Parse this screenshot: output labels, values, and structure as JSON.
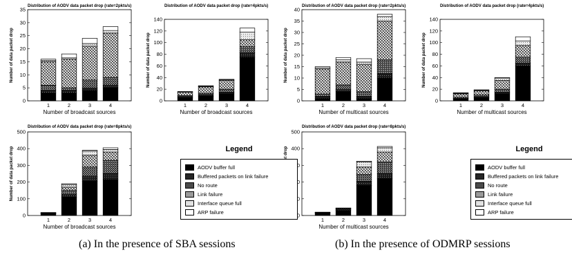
{
  "captions": {
    "a": "(a)  In the presence of SBA sessions",
    "b": "(b)  In the presence of ODMRP sessions"
  },
  "legend": {
    "title": "Legend",
    "items": [
      {
        "label": "AODV buffer full",
        "pattern": "black"
      },
      {
        "label": "Buffered packets on link failure",
        "pattern": "dark"
      },
      {
        "label": "No route",
        "pattern": "dense"
      },
      {
        "label": "Link failure",
        "pattern": "check"
      },
      {
        "label": "Interface queue full",
        "pattern": "light"
      },
      {
        "label": "ARP failure",
        "pattern": "white"
      }
    ]
  },
  "chart_data": [
    {
      "type": "bar",
      "stacked": true,
      "title": "Distribution of AODV data packet drop (rate=2pkts/s)",
      "xlabel": "Number of broadcast sources",
      "ylabel": "Number of data packet drop",
      "categories": [
        "1",
        "2",
        "3",
        "4"
      ],
      "ylim": [
        0,
        35
      ],
      "yticks": [
        0,
        5,
        10,
        15,
        20,
        25,
        30,
        35
      ],
      "series": [
        {
          "name": "AODV buffer full",
          "values": [
            3,
            3,
            4,
            5
          ]
        },
        {
          "name": "Buffered packets on link failure",
          "values": [
            1,
            1,
            1,
            1
          ]
        },
        {
          "name": "No route",
          "values": [
            2,
            1,
            3,
            3
          ]
        },
        {
          "name": "Link failure",
          "values": [
            9,
            11,
            13,
            17
          ]
        },
        {
          "name": "Interface queue full",
          "values": [
            0.5,
            0.5,
            1,
            1
          ]
        },
        {
          "name": "ARP failure",
          "values": [
            0.5,
            1.5,
            2,
            1.5
          ]
        }
      ]
    },
    {
      "type": "bar",
      "stacked": true,
      "title": "Distribution of AODV data packet drop (rate=4pkts/s)",
      "xlabel": "Number of broadcast sources",
      "ylabel": "Number of data packet drop",
      "categories": [
        "1",
        "2",
        "3",
        "4"
      ],
      "ylim": [
        0,
        140
      ],
      "yticks": [
        0,
        20,
        40,
        60,
        80,
        100,
        120,
        140
      ],
      "series": [
        {
          "name": "AODV buffer full",
          "values": [
            5,
            8,
            12,
            75
          ]
        },
        {
          "name": "Buffered packets on link failure",
          "values": [
            2,
            2,
            3,
            8
          ]
        },
        {
          "name": "No route",
          "values": [
            2,
            3,
            5,
            10
          ]
        },
        {
          "name": "Link failure",
          "values": [
            6,
            11,
            15,
            12
          ]
        },
        {
          "name": "Interface queue full",
          "values": [
            0.5,
            1,
            1,
            13
          ]
        },
        {
          "name": "ARP failure",
          "values": [
            0.5,
            1,
            1,
            7
          ]
        }
      ]
    },
    {
      "type": "bar",
      "stacked": true,
      "title": "Distribution of AODV data packet drop (rate=2pkts/s)",
      "xlabel": "Number of multicast sources",
      "ylabel": "Number of data packet drop",
      "categories": [
        "1",
        "2",
        "3",
        "4"
      ],
      "ylim": [
        0,
        40
      ],
      "yticks": [
        0,
        5,
        10,
        15,
        20,
        25,
        30,
        35,
        40
      ],
      "series": [
        {
          "name": "AODV buffer full",
          "values": [
            1,
            4,
            1,
            10
          ]
        },
        {
          "name": "Buffered packets on link failure",
          "values": [
            1,
            1,
            1,
            2
          ]
        },
        {
          "name": "No route",
          "values": [
            1,
            2,
            2,
            6
          ]
        },
        {
          "name": "Link failure",
          "values": [
            11,
            10,
            12,
            17
          ]
        },
        {
          "name": "Interface queue full",
          "values": [
            0.5,
            1,
            1,
            2
          ]
        },
        {
          "name": "ARP failure",
          "values": [
            0.5,
            1,
            1.5,
            1
          ]
        }
      ]
    },
    {
      "type": "bar",
      "stacked": true,
      "title": "Distribution of AODV data packet drop (rate=4pkts/s)",
      "xlabel": "Number of multicast sources",
      "ylabel": "Number of data packet drop",
      "categories": [
        "1",
        "2",
        "3",
        "4"
      ],
      "ylim": [
        0,
        140
      ],
      "yticks": [
        0,
        20,
        40,
        60,
        80,
        100,
        120,
        140
      ],
      "series": [
        {
          "name": "AODV buffer full",
          "values": [
            3,
            5,
            12,
            60
          ]
        },
        {
          "name": "Buffered packets on link failure",
          "values": [
            1,
            2,
            3,
            5
          ]
        },
        {
          "name": "No route",
          "values": [
            2,
            3,
            5,
            10
          ]
        },
        {
          "name": "Link failure",
          "values": [
            6,
            7,
            15,
            20
          ]
        },
        {
          "name": "Interface queue full",
          "values": [
            1,
            1,
            4,
            8
          ]
        },
        {
          "name": "ARP failure",
          "values": [
            1,
            1,
            1,
            7
          ]
        }
      ]
    },
    {
      "type": "bar",
      "stacked": true,
      "title": "Distribution of AODV data packet drop (rate=8pkts/s)",
      "xlabel": "Number of broadcast sources",
      "ylabel": "Number of data packet drop",
      "categories": [
        "1",
        "2",
        "3",
        "4"
      ],
      "ylim": [
        0,
        500
      ],
      "yticks": [
        0,
        100,
        200,
        300,
        400,
        500
      ],
      "series": [
        {
          "name": "AODV buffer full",
          "values": [
            10,
            110,
            205,
            215
          ]
        },
        {
          "name": "Buffered packets on link failure",
          "values": [
            2,
            15,
            30,
            35
          ]
        },
        {
          "name": "No route",
          "values": [
            2,
            25,
            55,
            80
          ]
        },
        {
          "name": "Link failure",
          "values": [
            2,
            20,
            70,
            50
          ]
        },
        {
          "name": "Interface queue full",
          "values": [
            1,
            15,
            25,
            15
          ]
        },
        {
          "name": "ARP failure",
          "values": [
            1,
            5,
            5,
            10
          ]
        }
      ]
    },
    {
      "type": "bar",
      "stacked": true,
      "title": "Distribution of AODV data packet drop (rate=8pkts/s)",
      "xlabel": "Number of multicast sources",
      "ylabel": "Number of data packet drop",
      "categories": [
        "1",
        "2",
        "3",
        "4"
      ],
      "ylim": [
        0,
        500
      ],
      "yticks": [
        0,
        100,
        200,
        300,
        400,
        500
      ],
      "series": [
        {
          "name": "AODV buffer full",
          "values": [
            12,
            30,
            180,
            220
          ]
        },
        {
          "name": "Buffered packets on link failure",
          "values": [
            2,
            5,
            25,
            30
          ]
        },
        {
          "name": "No route",
          "values": [
            2,
            5,
            40,
            70
          ]
        },
        {
          "name": "Link failure",
          "values": [
            2,
            3,
            45,
            60
          ]
        },
        {
          "name": "Interface queue full",
          "values": [
            1,
            1,
            30,
            25
          ]
        },
        {
          "name": "ARP failure",
          "values": [
            1,
            1,
            5,
            8
          ]
        }
      ]
    }
  ]
}
